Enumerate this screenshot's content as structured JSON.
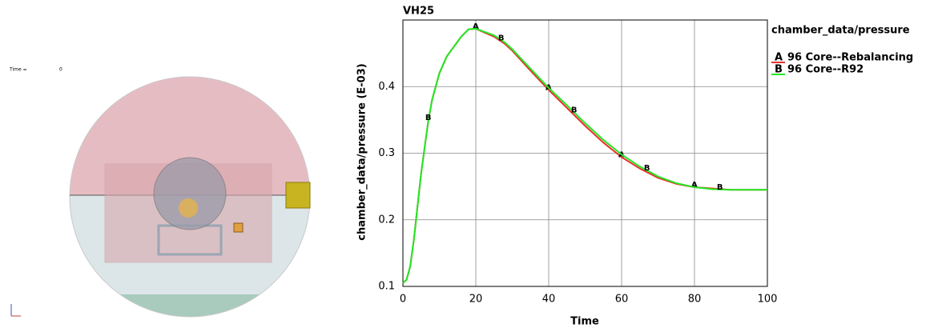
{
  "view": {
    "time_label": "Time =",
    "time_value": "0"
  },
  "chart_data": {
    "type": "line",
    "title": "VH25",
    "x_label": "Time",
    "y_label": "chamber_data/pressure (E-03)",
    "legend_title": "chamber_data/pressure",
    "x": [
      0,
      1,
      2,
      3,
      4,
      5,
      6,
      7,
      8,
      10,
      12,
      14,
      16,
      18,
      20,
      22,
      25,
      28,
      30,
      35,
      40,
      45,
      50,
      55,
      60,
      65,
      70,
      75,
      80,
      85,
      90,
      95,
      100
    ],
    "series": [
      {
        "name": "96 Core--Rebalancing",
        "marker": "A",
        "color": "#e8312a",
        "values": [
          0.105,
          0.11,
          0.13,
          0.17,
          0.22,
          0.27,
          0.31,
          0.35,
          0.38,
          0.42,
          0.445,
          0.46,
          0.475,
          0.486,
          0.487,
          0.482,
          0.475,
          0.464,
          0.454,
          0.424,
          0.395,
          0.368,
          0.341,
          0.316,
          0.294,
          0.277,
          0.263,
          0.254,
          0.249,
          0.247,
          0.245,
          0.245,
          0.245
        ]
      },
      {
        "name": "96 Core--R92",
        "marker": "B",
        "color": "#22e822",
        "values": [
          0.105,
          0.11,
          0.13,
          0.17,
          0.22,
          0.27,
          0.31,
          0.35,
          0.38,
          0.42,
          0.445,
          0.46,
          0.475,
          0.486,
          0.487,
          0.483,
          0.477,
          0.466,
          0.456,
          0.427,
          0.398,
          0.372,
          0.345,
          0.32,
          0.298,
          0.28,
          0.265,
          0.255,
          0.249,
          0.246,
          0.245,
          0.245,
          0.245
        ]
      }
    ],
    "xlim": [
      0,
      100
    ],
    "xticks": [
      0,
      20,
      40,
      60,
      80,
      100
    ],
    "ylim": [
      0.1,
      0.5
    ],
    "yticks": [
      0.1,
      0.2,
      0.3,
      0.4
    ],
    "grid": true
  }
}
